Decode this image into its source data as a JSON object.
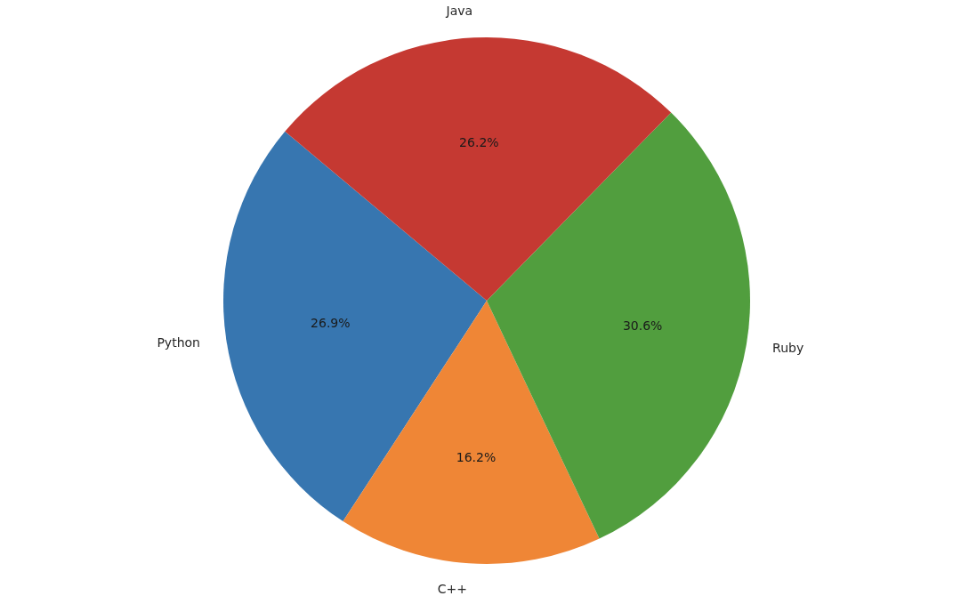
{
  "chart_data": {
    "type": "pie",
    "categories": [
      "Python",
      "C++",
      "Ruby",
      "Java"
    ],
    "values": [
      26.9,
      16.2,
      30.6,
      26.2
    ],
    "value_labels": [
      "26.9%",
      "16.2%",
      "30.6%",
      "26.2%"
    ],
    "colors": [
      "#3776b0",
      "#ef8636",
      "#519e3e",
      "#c53932"
    ]
  }
}
